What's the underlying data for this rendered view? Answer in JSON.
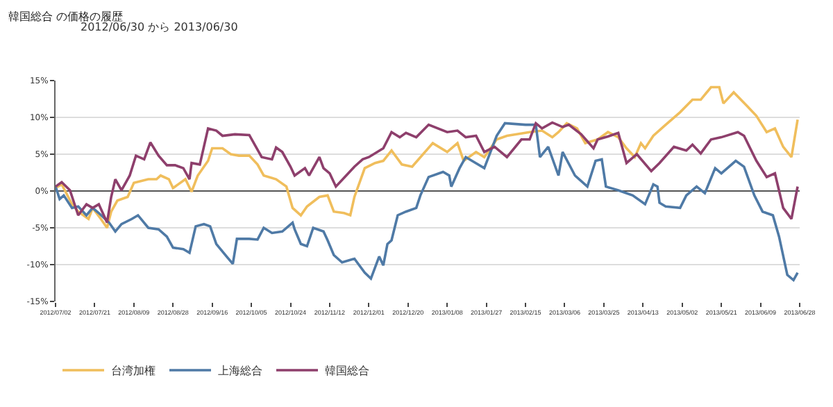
{
  "chart_data": {
    "type": "line",
    "title": "韓国総合 の価格の履歴",
    "subtitle": "2012/06/30 から 2013/06/30",
    "xlim": [
      "2012-07-02",
      "2013-06-28"
    ],
    "xticks": [
      {
        "value": "2012-07-02",
        "label": "2012/07/02"
      },
      {
        "value": "2012-07-21",
        "label": "2012/07/21"
      },
      {
        "value": "2012-08-09",
        "label": "2012/08/09"
      },
      {
        "value": "2012-08-28",
        "label": "2012/08/28"
      },
      {
        "value": "2012-09-16",
        "label": "2012/09/16"
      },
      {
        "value": "2012-10-05",
        "label": "2012/10/05"
      },
      {
        "value": "2012-10-24",
        "label": "2012/10/24"
      },
      {
        "value": "2012-11-12",
        "label": "2012/11/12"
      },
      {
        "value": "2012-12-01",
        "label": "2012/12/01"
      },
      {
        "value": "2012-12-20",
        "label": "2012/12/20"
      },
      {
        "value": "2013-01-08",
        "label": "2013/01/08"
      },
      {
        "value": "2013-01-27",
        "label": "2013/01/27"
      },
      {
        "value": "2013-02-15",
        "label": "2013/02/15"
      },
      {
        "value": "2013-03-06",
        "label": "2013/03/06"
      },
      {
        "value": "2013-03-25",
        "label": "2013/03/25"
      },
      {
        "value": "2013-04-13",
        "label": "2013/04/13"
      },
      {
        "value": "2013-05-02",
        "label": "2013/05/02"
      },
      {
        "value": "2013-05-21",
        "label": "2013/05/21"
      },
      {
        "value": "2013-06-09",
        "label": "2013/06/09"
      },
      {
        "value": "2013-06-28",
        "label": "2013/06/28"
      }
    ],
    "ylim": [
      -15,
      15
    ],
    "yticks": [
      {
        "value": -15,
        "label": "-15%"
      },
      {
        "value": -10,
        "label": "-10%"
      },
      {
        "value": -5,
        "label": "-5%"
      },
      {
        "value": 0,
        "label": "0%"
      },
      {
        "value": 5,
        "label": "5%"
      },
      {
        "value": 10,
        "label": "10%"
      },
      {
        "value": 15,
        "label": "15%"
      }
    ],
    "grid": "y",
    "legend": "bottom left",
    "marker": "none",
    "line_style": "solid",
    "series": [
      {
        "name": "台湾加権",
        "color": "#f0be5c",
        "x": [
          "2012-07-02",
          "2012-07-05",
          "2012-07-10",
          "2012-07-13",
          "2012-07-18",
          "2012-07-20",
          "2012-07-24",
          "2012-07-27",
          "2012-07-29",
          "2012-08-01",
          "2012-08-06",
          "2012-08-09",
          "2012-08-16",
          "2012-08-20",
          "2012-08-22",
          "2012-08-26",
          "2012-08-28",
          "2012-09-03",
          "2012-09-06",
          "2012-09-09",
          "2012-09-14",
          "2012-09-16",
          "2012-09-21",
          "2012-09-25",
          "2012-09-29",
          "2012-10-04",
          "2012-10-08",
          "2012-10-11",
          "2012-10-17",
          "2012-10-22",
          "2012-10-25",
          "2012-10-29",
          "2012-11-01",
          "2012-11-07",
          "2012-11-11",
          "2012-11-14",
          "2012-11-19",
          "2012-11-22",
          "2012-11-24",
          "2012-11-29",
          "2012-12-04",
          "2012-12-08",
          "2012-12-12",
          "2012-12-17",
          "2012-12-22",
          "2013-01-01",
          "2013-01-08",
          "2013-01-13",
          "2013-01-16",
          "2013-01-22",
          "2013-01-26",
          "2013-02-01",
          "2013-02-06",
          "2013-02-17",
          "2013-02-23",
          "2013-02-28",
          "2013-03-03",
          "2013-03-07",
          "2013-03-12",
          "2013-03-16",
          "2013-03-22",
          "2013-03-27",
          "2013-04-01",
          "2013-04-05",
          "2013-04-09",
          "2013-04-12",
          "2013-04-14",
          "2013-04-18",
          "2013-04-24",
          "2013-05-01",
          "2013-05-07",
          "2013-05-11",
          "2013-05-16",
          "2013-05-20",
          "2013-05-22",
          "2013-05-27",
          "2013-06-03",
          "2013-06-07",
          "2013-06-12",
          "2013-06-16",
          "2013-06-20",
          "2013-06-24",
          "2013-06-27"
        ],
        "values": [
          0.4,
          0.9,
          -1.8,
          -2.8,
          -3.8,
          -2.3,
          -3.8,
          -5.0,
          -2.8,
          -1.3,
          -0.8,
          1.1,
          1.6,
          1.6,
          2.1,
          1.6,
          0.4,
          1.6,
          -0.1,
          2.1,
          4.1,
          5.8,
          5.8,
          5.0,
          4.8,
          4.8,
          3.6,
          2.1,
          1.6,
          0.6,
          -2.3,
          -3.3,
          -2.1,
          -0.8,
          -0.6,
          -2.8,
          -3.0,
          -3.3,
          -0.8,
          3.1,
          3.8,
          4.1,
          5.5,
          3.6,
          3.3,
          6.5,
          5.3,
          6.5,
          4.1,
          5.3,
          4.6,
          7.0,
          7.5,
          8.0,
          8.2,
          7.3,
          8.0,
          9.2,
          8.5,
          6.5,
          7.0,
          8.0,
          7.3,
          5.8,
          4.6,
          6.5,
          5.8,
          7.5,
          9.0,
          10.7,
          12.4,
          12.4,
          14.1,
          14.1,
          11.9,
          13.4,
          11.4,
          10.2,
          8.0,
          8.5,
          6.0,
          4.6,
          9.7
        ]
      },
      {
        "name": "上海総合",
        "color": "#4f7aa6",
        "x": [
          "2012-07-02",
          "2012-07-04",
          "2012-07-06",
          "2012-07-10",
          "2012-07-13",
          "2012-07-17",
          "2012-07-20",
          "2012-07-23",
          "2012-07-28",
          "2012-07-31",
          "2012-08-03",
          "2012-08-08",
          "2012-08-11",
          "2012-08-16",
          "2012-08-21",
          "2012-08-25",
          "2012-08-28",
          "2012-09-02",
          "2012-09-05",
          "2012-09-08",
          "2012-09-12",
          "2012-09-15",
          "2012-09-18",
          "2012-09-23",
          "2012-09-26",
          "2012-09-28",
          "2012-10-04",
          "2012-10-08",
          "2012-10-11",
          "2012-10-15",
          "2012-10-20",
          "2012-10-25",
          "2012-10-26",
          "2012-10-29",
          "2012-11-01",
          "2012-11-04",
          "2012-11-09",
          "2012-11-11",
          "2012-11-14",
          "2012-11-18",
          "2012-11-24",
          "2012-11-29",
          "2012-12-02",
          "2012-12-06",
          "2012-12-08",
          "2012-12-10",
          "2012-12-12",
          "2012-12-15",
          "2012-12-19",
          "2012-12-24",
          "2012-12-26",
          "2012-12-30",
          "2013-01-06",
          "2013-01-09",
          "2013-01-10",
          "2013-01-14",
          "2013-01-17",
          "2013-01-20",
          "2013-01-26",
          "2013-02-01",
          "2013-02-05",
          "2013-02-15",
          "2013-02-20",
          "2013-02-22",
          "2013-02-26",
          "2013-03-03",
          "2013-03-05",
          "2013-03-11",
          "2013-03-17",
          "2013-03-21",
          "2013-03-24",
          "2013-03-26",
          "2013-04-01",
          "2013-04-08",
          "2013-04-14",
          "2013-04-18",
          "2013-04-20",
          "2013-04-21",
          "2013-04-24",
          "2013-05-01",
          "2013-05-04",
          "2013-05-09",
          "2013-05-13",
          "2013-05-18",
          "2013-05-21",
          "2013-05-28",
          "2013-06-01",
          "2013-06-06",
          "2013-06-10",
          "2013-06-15",
          "2013-06-18",
          "2013-06-22",
          "2013-06-25",
          "2013-06-27"
        ],
        "values": [
          0.6,
          -1.1,
          -0.6,
          -2.3,
          -2.1,
          -3.3,
          -2.3,
          -3.0,
          -4.3,
          -5.5,
          -4.5,
          -3.8,
          -3.3,
          -5.0,
          -5.2,
          -6.2,
          -7.7,
          -7.9,
          -8.4,
          -4.8,
          -4.5,
          -4.8,
          -7.2,
          -8.9,
          -9.9,
          -6.5,
          -6.5,
          -6.6,
          -5.0,
          -5.7,
          -5.5,
          -4.3,
          -5.2,
          -7.2,
          -7.5,
          -5.0,
          -5.5,
          -6.7,
          -8.7,
          -9.7,
          -9.2,
          -11.1,
          -11.9,
          -8.9,
          -10.1,
          -7.2,
          -6.7,
          -3.3,
          -2.8,
          -2.3,
          -0.6,
          1.9,
          2.6,
          2.1,
          0.6,
          3.1,
          4.6,
          4.1,
          3.1,
          7.5,
          9.2,
          9.0,
          9.0,
          4.6,
          6.0,
          2.1,
          5.3,
          2.1,
          0.6,
          4.1,
          4.3,
          0.6,
          0.1,
          -0.6,
          -1.8,
          0.9,
          0.6,
          -1.6,
          -2.1,
          -2.3,
          -0.6,
          0.6,
          -0.3,
          3.1,
          2.4,
          4.1,
          3.3,
          -0.6,
          -2.8,
          -3.3,
          -6.2,
          -11.4,
          -12.1,
          -11.1
        ]
      },
      {
        "name": "韓国総合",
        "color": "#8e3f6c",
        "x": [
          "2012-07-02",
          "2012-07-05",
          "2012-07-09",
          "2012-07-13",
          "2012-07-17",
          "2012-07-20",
          "2012-07-23",
          "2012-07-27",
          "2012-07-29",
          "2012-07-31",
          "2012-08-03",
          "2012-08-07",
          "2012-08-10",
          "2012-08-14",
          "2012-08-17",
          "2012-08-21",
          "2012-08-25",
          "2012-08-29",
          "2012-09-02",
          "2012-09-05",
          "2012-09-06",
          "2012-09-10",
          "2012-09-14",
          "2012-09-18",
          "2012-09-21",
          "2012-09-27",
          "2012-10-04",
          "2012-10-10",
          "2012-10-15",
          "2012-10-17",
          "2012-10-20",
          "2012-10-24",
          "2012-10-26",
          "2012-10-31",
          "2012-11-02",
          "2012-11-07",
          "2012-11-09",
          "2012-11-12",
          "2012-11-15",
          "2012-11-20",
          "2012-11-24",
          "2012-11-28",
          "2012-12-01",
          "2012-12-08",
          "2012-12-12",
          "2012-12-16",
          "2012-12-19",
          "2012-12-24",
          "2012-12-30",
          "2013-01-08",
          "2013-01-13",
          "2013-01-17",
          "2013-01-22",
          "2013-01-26",
          "2013-01-31",
          "2013-02-06",
          "2013-02-13",
          "2013-02-17",
          "2013-02-20",
          "2013-02-23",
          "2013-02-28",
          "2013-03-05",
          "2013-03-08",
          "2013-03-14",
          "2013-03-20",
          "2013-03-22",
          "2013-03-27",
          "2013-04-01",
          "2013-04-05",
          "2013-04-10",
          "2013-04-17",
          "2013-04-21",
          "2013-04-28",
          "2013-05-04",
          "2013-05-07",
          "2013-05-11",
          "2013-05-16",
          "2013-05-21",
          "2013-05-29",
          "2013-06-01",
          "2013-06-07",
          "2013-06-12",
          "2013-06-16",
          "2013-06-20",
          "2013-06-24",
          "2013-06-27"
        ],
        "values": [
          0.6,
          1.2,
          0.1,
          -3.3,
          -1.8,
          -2.3,
          -1.8,
          -4.3,
          -0.8,
          1.6,
          0.1,
          2.1,
          4.8,
          4.3,
          6.6,
          4.8,
          3.5,
          3.5,
          3.1,
          1.6,
          3.8,
          3.6,
          8.5,
          8.2,
          7.5,
          7.7,
          7.6,
          4.6,
          4.3,
          5.9,
          5.3,
          3.3,
          2.1,
          3.1,
          2.1,
          4.6,
          3.1,
          2.4,
          0.6,
          2.1,
          3.3,
          4.3,
          4.6,
          5.8,
          8.0,
          7.3,
          7.9,
          7.3,
          9.0,
          8.0,
          8.2,
          7.3,
          7.5,
          5.3,
          6.0,
          4.6,
          7.0,
          7.0,
          9.2,
          8.5,
          9.3,
          8.7,
          9.0,
          7.7,
          5.8,
          7.0,
          7.4,
          7.9,
          3.8,
          5.0,
          2.7,
          3.8,
          6.0,
          5.5,
          6.3,
          5.1,
          7.0,
          7.3,
          8.0,
          7.5,
          4.1,
          1.9,
          2.4,
          -2.3,
          -3.8,
          0.6
        ]
      }
    ]
  }
}
